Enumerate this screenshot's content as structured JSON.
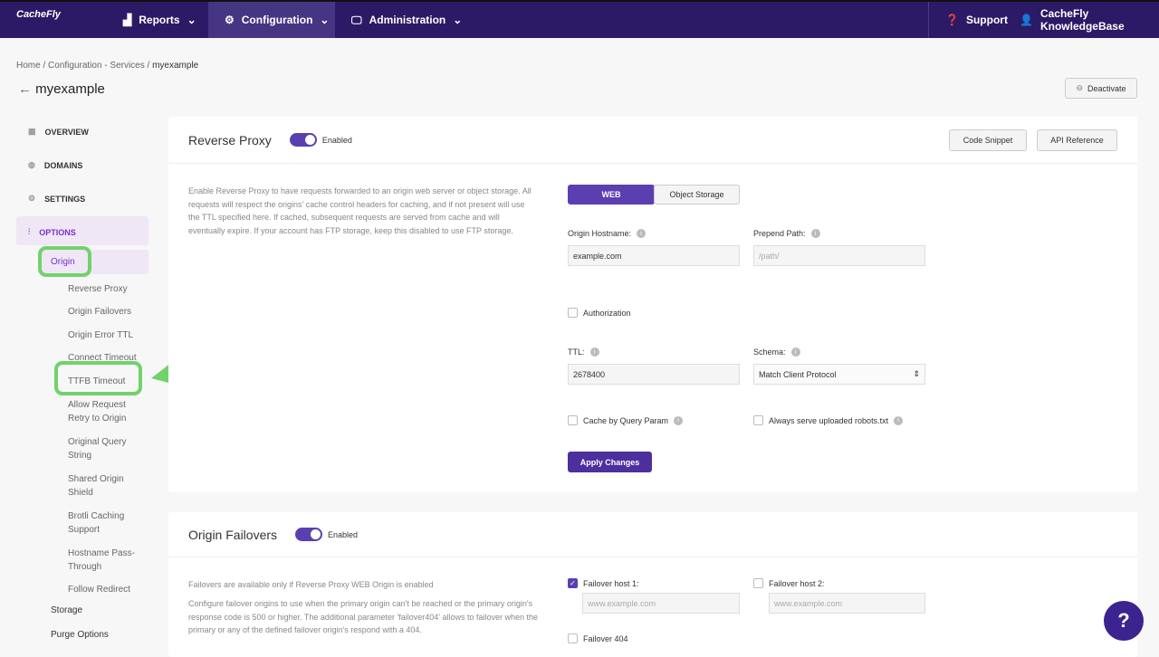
{
  "nav": {
    "logo": "CacheFly",
    "reports": "Reports",
    "configuration": "Configuration",
    "administration": "Administration",
    "support": "Support",
    "user_line1": "CacheFly",
    "user_line2": "KnowledgeBase"
  },
  "breadcrumb": [
    "Home",
    "Configuration - Services",
    "myexample"
  ],
  "page": {
    "title": "myexample",
    "deactivate": "Deactivate"
  },
  "sidebar": {
    "items": [
      "OVERVIEW",
      "DOMAINS",
      "SETTINGS",
      "OPTIONS"
    ],
    "active_section": "Origin",
    "subitems": [
      "Reverse Proxy",
      "Origin Failovers",
      "Origin Error TTL",
      "Connect Timeout",
      "TTFB Timeout",
      "Allow Request Retry to Origin",
      "Original Query String",
      "Shared Origin Shield",
      "Brotli Caching Support",
      "Hostname Pass-Through",
      "Follow Redirect"
    ],
    "sections": [
      "Storage",
      "Purge Options"
    ]
  },
  "reverse_proxy": {
    "title": "Reverse Proxy",
    "toggle": "Enabled",
    "code_snippet": "Code Snippet",
    "api_reference": "API Reference",
    "description": "Enable Reverse Proxy to have requests forwarded to an origin web server or object storage. All requests will respect the origins' cache control headers for caching, and if not present will use the TTL specified here. If cached, subsequent requests are served from cache and will eventually expire. If your account has FTP storage, keep this disabled to use FTP storage.",
    "tabs": [
      "WEB",
      "Object Storage"
    ],
    "origin_hostname_label": "Origin Hostname:",
    "origin_hostname": "example.com",
    "prepend_path_label": "Prepend Path:",
    "prepend_path_placeholder": "/path/",
    "authorization": "Authorization",
    "ttl_label": "TTL:",
    "ttl": "2678400",
    "schema_label": "Schema:",
    "schema": "Match Client Protocol",
    "cache_by_query": "Cache by Query Param",
    "robots": "Always serve uploaded robots.txt",
    "apply": "Apply Changes"
  },
  "failovers": {
    "title": "Origin Failovers",
    "toggle": "Enabled",
    "note": "Failovers are available only if Reverse Proxy WEB Origin is enabled",
    "description": "Configure failover origins to use when the primary origin can't be reached or the primary origin's response code is 500 or higher. The additional parameter 'failover404' allows to failover when the primary or any of the defined failover origin's respond with a 404.",
    "host1_label": "Failover host 1:",
    "host1_placeholder": "www.example.com",
    "host2_label": "Failover host 2:",
    "host2_placeholder": "www.example.com",
    "failover404": "Failover 404"
  },
  "help": "?",
  "colors": {
    "nav": "#2c1a66",
    "accent": "#5b3fb0",
    "highlight": "#72d26a"
  }
}
